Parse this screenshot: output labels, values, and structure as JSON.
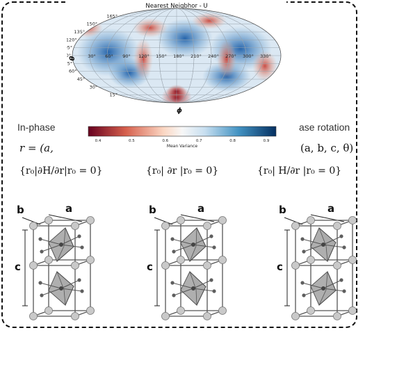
{
  "map": {
    "title": "Nearest Neigbhor - U",
    "phi_axis_label": "ϕ",
    "theta_axis_label": "θ",
    "phi_ticks": [
      "30°",
      "60°",
      "90°",
      "120°",
      "150°",
      "180°",
      "210°",
      "240°",
      "270°",
      "300°",
      "330°"
    ],
    "theta_ticks_left": [
      "165°",
      "150°",
      "135°",
      "120°",
      "105°",
      "90°",
      "75°",
      "60°",
      "45°",
      "30°",
      "15°"
    ],
    "colorbar_label": "Mean Variance",
    "colorbar_ticks": [
      "0.4",
      "0.5",
      "0.6",
      "0.7",
      "0.8",
      "0.9"
    ],
    "colors": {
      "low": "#67001f",
      "mid": "#f7f7f7",
      "high": "#053061"
    }
  },
  "labels": {
    "left_title": "In-phase",
    "right_title": "ase rotation"
  },
  "equations": {
    "left_coords": "r = (a,",
    "right_coords": "(a, b, c, θ)",
    "left_condition": "{r₀|∂H/∂r|r₀ = 0}",
    "middle_condition": "{r₀| ∂r |r₀ = 0}",
    "right_condition": "{r₀| H/∂r |r₀ = 0}"
  },
  "crystal": {
    "axis_a": "a",
    "axis_b": "b",
    "axis_c": "c"
  }
}
